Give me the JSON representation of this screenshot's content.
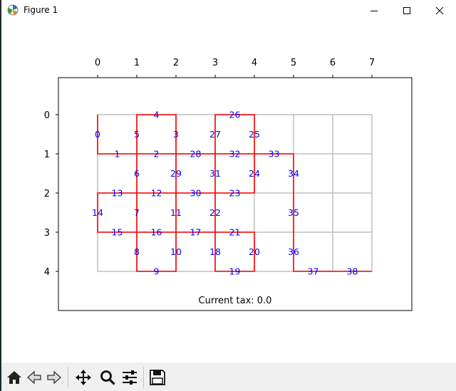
{
  "window": {
    "title": "Figure 1"
  },
  "chart_data": {
    "type": "line",
    "x_ticks": [
      "0",
      "1",
      "2",
      "3",
      "4",
      "5",
      "6",
      "7"
    ],
    "y_ticks": [
      "0",
      "1",
      "2",
      "3",
      "4"
    ],
    "xlim": [
      -1,
      8
    ],
    "ylim": [
      5,
      -1
    ],
    "grid": {
      "cols": 7,
      "rows": 4,
      "color": "#bfbfbf"
    },
    "nodes": [
      {
        "id": "0",
        "x": 0,
        "y": 0.5
      },
      {
        "id": "1",
        "x": 0.5,
        "y": 1
      },
      {
        "id": "2",
        "x": 1.5,
        "y": 1
      },
      {
        "id": "3",
        "x": 2,
        "y": 0.5
      },
      {
        "id": "4",
        "x": 1.5,
        "y": 0
      },
      {
        "id": "5",
        "x": 1,
        "y": 0.5
      },
      {
        "id": "6",
        "x": 1,
        "y": 1.5
      },
      {
        "id": "7",
        "x": 1,
        "y": 2.5
      },
      {
        "id": "8",
        "x": 1,
        "y": 3.5
      },
      {
        "id": "9",
        "x": 1.5,
        "y": 4
      },
      {
        "id": "10",
        "x": 2,
        "y": 3.5
      },
      {
        "id": "11",
        "x": 2,
        "y": 2.5
      },
      {
        "id": "12",
        "x": 1.5,
        "y": 2
      },
      {
        "id": "13",
        "x": 0.5,
        "y": 2
      },
      {
        "id": "14",
        "x": 0,
        "y": 2.5
      },
      {
        "id": "15",
        "x": 0.5,
        "y": 3
      },
      {
        "id": "16",
        "x": 1.5,
        "y": 3
      },
      {
        "id": "17",
        "x": 2.5,
        "y": 3
      },
      {
        "id": "18",
        "x": 3,
        "y": 3.5
      },
      {
        "id": "19",
        "x": 3.5,
        "y": 4
      },
      {
        "id": "20",
        "x": 4,
        "y": 3.5
      },
      {
        "id": "21",
        "x": 3.5,
        "y": 3
      },
      {
        "id": "22",
        "x": 3,
        "y": 2.5
      },
      {
        "id": "23",
        "x": 3.5,
        "y": 2
      },
      {
        "id": "24",
        "x": 4,
        "y": 1.5
      },
      {
        "id": "25",
        "x": 4,
        "y": 0.5
      },
      {
        "id": "26",
        "x": 3.5,
        "y": 0
      },
      {
        "id": "27",
        "x": 3,
        "y": 0.5
      },
      {
        "id": "28",
        "x": 2.5,
        "y": 1
      },
      {
        "id": "29",
        "x": 2,
        "y": 1.5
      },
      {
        "id": "30",
        "x": 2.5,
        "y": 2
      },
      {
        "id": "31",
        "x": 3,
        "y": 1.5
      },
      {
        "id": "32",
        "x": 3.5,
        "y": 1
      },
      {
        "id": "33",
        "x": 4.5,
        "y": 1
      },
      {
        "id": "34",
        "x": 5,
        "y": 1.5
      },
      {
        "id": "35",
        "x": 5,
        "y": 2.5
      },
      {
        "id": "36",
        "x": 5,
        "y": 3.5
      },
      {
        "id": "37",
        "x": 5.5,
        "y": 4
      },
      {
        "id": "38",
        "x": 6.5,
        "y": 4
      }
    ],
    "path_segments": [
      [
        [
          0,
          0
        ],
        [
          0,
          1
        ],
        [
          1,
          1
        ],
        [
          1,
          0
        ],
        [
          2,
          0
        ],
        [
          2,
          1
        ],
        [
          1,
          1
        ],
        [
          1,
          3
        ],
        [
          1,
          4
        ],
        [
          2,
          4
        ],
        [
          2,
          2
        ],
        [
          1,
          2
        ],
        [
          0,
          2
        ],
        [
          0,
          3
        ],
        [
          2,
          3
        ],
        [
          3,
          3
        ],
        [
          3,
          4
        ],
        [
          4,
          4
        ],
        [
          4,
          3
        ],
        [
          3,
          3
        ],
        [
          3,
          2
        ],
        [
          4,
          2
        ],
        [
          4,
          0
        ],
        [
          3,
          0
        ],
        [
          3,
          1
        ],
        [
          2,
          1
        ],
        [
          2,
          2
        ],
        [
          3,
          2
        ],
        [
          3,
          1
        ],
        [
          5,
          1
        ],
        [
          5,
          4
        ],
        [
          7,
          4
        ]
      ]
    ],
    "path_color": "#ff0000",
    "label_color": "#0000ff",
    "annotation": "Current tax: 0.0"
  }
}
